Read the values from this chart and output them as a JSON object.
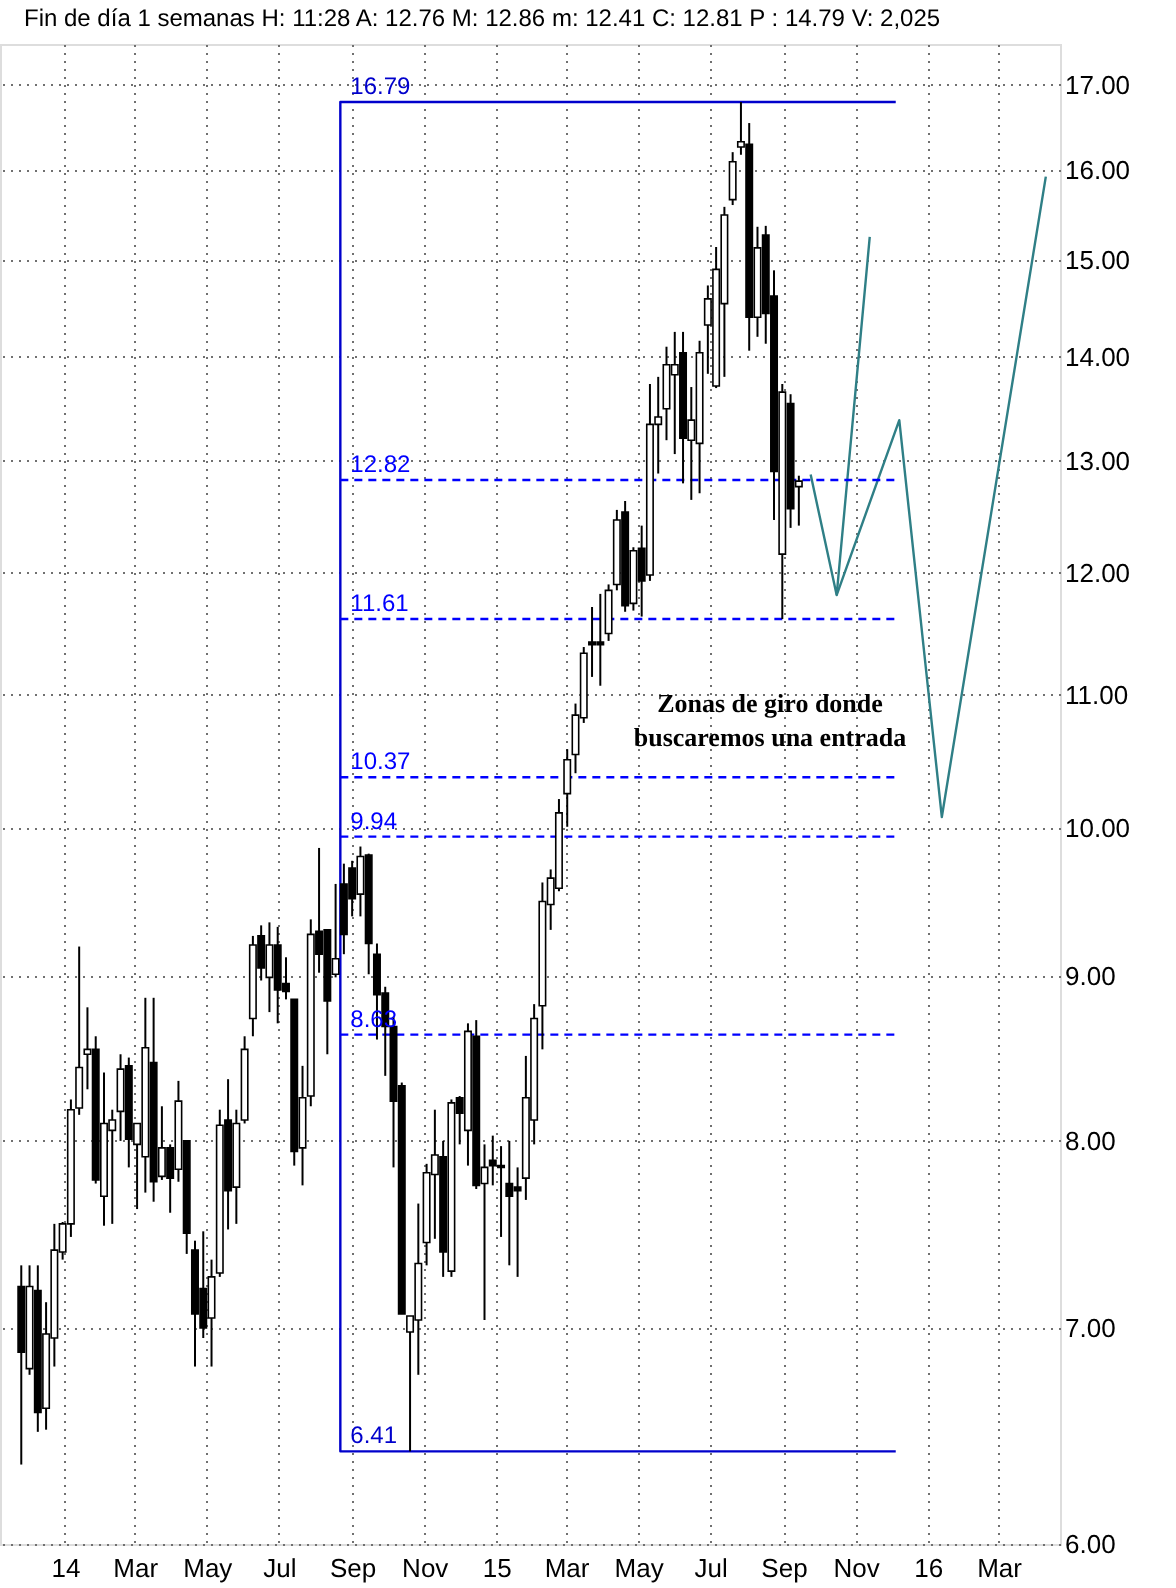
{
  "chart_data": {
    "type": "candlestick",
    "title": "Fin de día 1 semanas  H: 11:28  A: 12.76  M: 12.86  m: 12.41  C: 12.81  P : 14.79  V: 2,025",
    "annotations": [
      "Zonas de giro donde buscaremos una entrada"
    ],
    "x": [
      "2013-11-25",
      "2013-12-02",
      "2013-12-09",
      "2013-12-16",
      "2013-12-23",
      "2013-12-30",
      "2014-01-06",
      "2014-01-13",
      "2014-01-20",
      "2014-01-27",
      "2014-02-03",
      "2014-02-10",
      "2014-02-17",
      "2014-02-24",
      "2014-03-03",
      "2014-03-10",
      "2014-03-17",
      "2014-03-24",
      "2014-03-31",
      "2014-04-07",
      "2014-04-14",
      "2014-04-21",
      "2014-04-28",
      "2014-05-05",
      "2014-05-12",
      "2014-05-19",
      "2014-05-26",
      "2014-06-02",
      "2014-06-09",
      "2014-06-16",
      "2014-06-23",
      "2014-06-30",
      "2014-07-07",
      "2014-07-14",
      "2014-07-21",
      "2014-07-28",
      "2014-08-04",
      "2014-08-11",
      "2014-08-18",
      "2014-08-25",
      "2014-09-01",
      "2014-09-08",
      "2014-09-15",
      "2014-09-22",
      "2014-09-29",
      "2014-10-06",
      "2014-10-13",
      "2014-10-20",
      "2014-10-27",
      "2014-11-03",
      "2014-11-10",
      "2014-11-17",
      "2014-11-24",
      "2014-12-01",
      "2014-12-08",
      "2014-12-15",
      "2014-12-22",
      "2014-12-29",
      "2015-01-05",
      "2015-01-12",
      "2015-01-19",
      "2015-01-26",
      "2015-02-02",
      "2015-02-09",
      "2015-02-16",
      "2015-02-23",
      "2015-03-02",
      "2015-03-09",
      "2015-03-16",
      "2015-03-23",
      "2015-03-30",
      "2015-04-06",
      "2015-04-13",
      "2015-04-20",
      "2015-04-27",
      "2015-05-04",
      "2015-05-11",
      "2015-05-18",
      "2015-05-25",
      "2015-06-01",
      "2015-06-08",
      "2015-06-15",
      "2015-06-22",
      "2015-06-29",
      "2015-07-06",
      "2015-07-13",
      "2015-07-20",
      "2015-07-27",
      "2015-08-03",
      "2015-08-10",
      "2015-08-17",
      "2015-08-24",
      "2015-08-31",
      "2015-09-07",
      "2015-09-14"
    ],
    "ohlc": [
      [
        7.21,
        7.32,
        6.35,
        6.88
      ],
      [
        6.8,
        7.32,
        6.77,
        7.21
      ],
      [
        7.19,
        7.32,
        6.5,
        6.59
      ],
      [
        6.61,
        7.13,
        6.51,
        6.97
      ],
      [
        6.95,
        7.54,
        6.81,
        7.4
      ],
      [
        7.39,
        7.55,
        7.35,
        7.54
      ],
      [
        7.54,
        8.24,
        7.47,
        8.18
      ],
      [
        8.19,
        9.19,
        8.15,
        8.43
      ],
      [
        8.51,
        8.8,
        8.3,
        8.54
      ],
      [
        8.54,
        8.62,
        7.76,
        7.78
      ],
      [
        7.69,
        8.4,
        7.53,
        8.1
      ],
      [
        8.06,
        8.18,
        7.54,
        8.12
      ],
      [
        8.17,
        8.51,
        8.0,
        8.42
      ],
      [
        8.44,
        8.49,
        7.85,
        8.01
      ],
      [
        7.98,
        8.1,
        7.62,
        8.1
      ],
      [
        7.91,
        8.86,
        7.71,
        8.55
      ],
      [
        8.46,
        8.86,
        7.66,
        7.77
      ],
      [
        7.8,
        8.2,
        7.78,
        7.96
      ],
      [
        7.96,
        7.98,
        7.6,
        7.79
      ],
      [
        7.84,
        8.35,
        7.77,
        8.23
      ],
      [
        8.0,
        8.0,
        7.38,
        7.49
      ],
      [
        7.4,
        7.45,
        6.81,
        7.07
      ],
      [
        7.2,
        7.5,
        6.95,
        7.0
      ],
      [
        7.05,
        7.35,
        6.81,
        7.26
      ],
      [
        7.28,
        8.18,
        7.26,
        8.09
      ],
      [
        8.12,
        8.36,
        7.51,
        7.72
      ],
      [
        7.74,
        8.18,
        7.54,
        8.1
      ],
      [
        8.12,
        8.62,
        8.1,
        8.54
      ],
      [
        8.73,
        9.26,
        8.62,
        9.2
      ],
      [
        9.26,
        9.33,
        8.97,
        9.05
      ],
      [
        8.99,
        9.35,
        8.77,
        9.2
      ],
      [
        9.2,
        9.32,
        8.7,
        8.91
      ],
      [
        8.95,
        9.12,
        8.85,
        8.9
      ],
      [
        8.85,
        8.85,
        7.86,
        7.94
      ],
      [
        7.96,
        8.44,
        7.75,
        8.25
      ],
      [
        8.26,
        9.37,
        8.2,
        9.27
      ],
      [
        9.29,
        9.86,
        9.02,
        9.14
      ],
      [
        9.3,
        9.3,
        8.51,
        8.84
      ],
      [
        9.01,
        9.61,
        8.99,
        9.11
      ],
      [
        9.61,
        9.75,
        9.14,
        9.27
      ],
      [
        9.72,
        9.77,
        9.39,
        9.51
      ],
      [
        9.54,
        9.87,
        9.39,
        9.8
      ],
      [
        9.81,
        9.82,
        9.01,
        9.21
      ],
      [
        9.14,
        9.21,
        8.6,
        8.88
      ],
      [
        8.89,
        8.93,
        8.38,
        8.68
      ],
      [
        8.68,
        8.74,
        7.85,
        8.23
      ],
      [
        8.32,
        8.34,
        7.07,
        7.07
      ],
      [
        6.98,
        7.06,
        6.41,
        7.06
      ],
      [
        7.04,
        7.65,
        6.77,
        7.33
      ],
      [
        7.44,
        7.87,
        7.32,
        7.82
      ],
      [
        7.81,
        8.18,
        7.46,
        7.92
      ],
      [
        7.91,
        8.0,
        7.26,
        7.39
      ],
      [
        7.29,
        8.24,
        7.26,
        8.22
      ],
      [
        8.25,
        8.26,
        7.98,
        8.16
      ],
      [
        8.06,
        8.7,
        7.86,
        8.65
      ],
      [
        8.62,
        8.72,
        7.73,
        7.75
      ],
      [
        7.76,
        7.98,
        7.04,
        7.85
      ],
      [
        7.89,
        8.03,
        7.75,
        7.86
      ],
      [
        7.86,
        7.97,
        7.47,
        7.85
      ],
      [
        7.76,
        8.0,
        7.32,
        7.69
      ],
      [
        7.74,
        7.85,
        7.26,
        7.72
      ],
      [
        7.79,
        8.5,
        7.67,
        8.25
      ],
      [
        8.12,
        8.82,
        7.98,
        8.73
      ],
      [
        8.81,
        9.62,
        8.54,
        9.49
      ],
      [
        9.47,
        9.71,
        9.3,
        9.65
      ],
      [
        9.58,
        10.21,
        9.56,
        10.11
      ],
      [
        10.25,
        10.58,
        10.01,
        10.5
      ],
      [
        10.54,
        10.93,
        10.4,
        10.84
      ],
      [
        10.82,
        11.38,
        10.78,
        11.33
      ],
      [
        11.42,
        11.71,
        11.14,
        11.4
      ],
      [
        11.42,
        11.82,
        11.07,
        11.4
      ],
      [
        11.49,
        11.9,
        11.43,
        11.85
      ],
      [
        11.9,
        12.55,
        11.85,
        12.46
      ],
      [
        12.53,
        12.63,
        11.67,
        11.72
      ],
      [
        11.74,
        12.22,
        11.68,
        12.19
      ],
      [
        12.21,
        12.41,
        11.63,
        11.93
      ],
      [
        11.98,
        13.73,
        11.93,
        13.34
      ],
      [
        13.34,
        13.8,
        12.88,
        13.41
      ],
      [
        13.49,
        14.1,
        13.19,
        13.92
      ],
      [
        13.82,
        14.25,
        13.06,
        13.92
      ],
      [
        14.04,
        14.25,
        12.79,
        13.21
      ],
      [
        13.19,
        13.7,
        12.64,
        13.38
      ],
      [
        13.16,
        14.16,
        12.7,
        14.04
      ],
      [
        14.32,
        14.73,
        13.83,
        14.59
      ],
      [
        13.71,
        15.14,
        13.69,
        14.9
      ],
      [
        14.54,
        15.58,
        13.8,
        15.49
      ],
      [
        15.66,
        16.2,
        15.6,
        16.09
      ],
      [
        16.26,
        16.79,
        16.17,
        16.32
      ],
      [
        16.29,
        16.54,
        14.06,
        14.4
      ],
      [
        14.4,
        15.36,
        14.2,
        15.13
      ],
      [
        15.27,
        15.37,
        14.13,
        14.44
      ],
      [
        14.62,
        14.89,
        12.46,
        12.9
      ],
      [
        12.16,
        13.73,
        11.61,
        13.65
      ],
      [
        13.54,
        13.63,
        12.39,
        12.56
      ],
      [
        12.76,
        12.86,
        12.41,
        12.81
      ]
    ],
    "series": [
      {
        "type": "line",
        "color": "#0000cc",
        "line_style": "solid",
        "x": [
          "2015-12-05",
          "2014-08-22",
          "2014-08-22",
          "2015-12-05"
        ],
        "values": [
          16.79,
          16.79,
          6.41,
          6.41
        ],
        "value_labels": [
          null,
          "16.79",
          "6.41",
          null
        ]
      },
      {
        "type": "line",
        "color": "#0000ff",
        "line_style": "dashed",
        "x": [
          "2014-08-22",
          "2015-12-05"
        ],
        "values": [
          12.82,
          12.82
        ],
        "value_labels": [
          "12.82",
          null
        ]
      },
      {
        "type": "line",
        "color": "#0000ff",
        "line_style": "dashed",
        "x": [
          "2014-08-22",
          "2015-12-05"
        ],
        "values": [
          11.61,
          11.61
        ],
        "value_labels": [
          "11.61",
          null
        ]
      },
      {
        "type": "line",
        "color": "#0000ff",
        "line_style": "dashed",
        "x": [
          "2014-08-22",
          "2015-12-05"
        ],
        "values": [
          10.37,
          10.37
        ],
        "value_labels": [
          "10.37",
          null
        ]
      },
      {
        "type": "line",
        "color": "#0000ff",
        "line_style": "dashed",
        "x": [
          "2014-08-22",
          "2015-12-05"
        ],
        "values": [
          9.94,
          9.94
        ],
        "value_labels": [
          "9.94",
          null
        ]
      },
      {
        "type": "line",
        "color": "#0000ff",
        "line_style": "dashed",
        "x": [
          "2014-08-22",
          "2015-12-05"
        ],
        "values": [
          8.63,
          8.63
        ],
        "value_labels": [
          "8.63",
          null
        ]
      },
      {
        "type": "line",
        "color": "#2f7f86",
        "line_style": "solid",
        "x": [
          "2015-09-24",
          "2015-10-16",
          "2015-11-13"
        ],
        "values": [
          12.87,
          11.81,
          15.25
        ]
      },
      {
        "type": "line",
        "color": "#2f7f86",
        "line_style": "solid",
        "x": [
          "2015-10-16",
          "2015-12-08",
          "2016-01-13",
          "2016-04-10"
        ],
        "values": [
          11.81,
          13.38,
          10.08,
          15.92
        ]
      }
    ],
    "xlim": [
      "2013-11-07",
      "2016-04-22"
    ],
    "xticks": [
      {
        "value": "2014-01-01",
        "label": "14"
      },
      {
        "value": "2014-03-01",
        "label": "Mar"
      },
      {
        "value": "2014-05-01",
        "label": "May"
      },
      {
        "value": "2014-07-01",
        "label": "Jul"
      },
      {
        "value": "2014-09-01",
        "label": "Sep"
      },
      {
        "value": "2014-11-01",
        "label": "Nov"
      },
      {
        "value": "2015-01-01",
        "label": "15"
      },
      {
        "value": "2015-03-01",
        "label": "Mar"
      },
      {
        "value": "2015-05-01",
        "label": "May"
      },
      {
        "value": "2015-07-01",
        "label": "Jul"
      },
      {
        "value": "2015-09-01",
        "label": "Sep"
      },
      {
        "value": "2015-11-01",
        "label": "Nov"
      },
      {
        "value": "2016-01-01",
        "label": "16"
      },
      {
        "value": "2016-03-01",
        "label": "Mar"
      }
    ],
    "ylim": [
      6,
      17.5
    ],
    "yticks": [
      {
        "value": 6,
        "label": "6.00"
      },
      {
        "value": 7,
        "label": "7.00"
      },
      {
        "value": 8,
        "label": "8.00"
      },
      {
        "value": 9,
        "label": "9.00"
      },
      {
        "value": 10,
        "label": "10.00"
      },
      {
        "value": 11,
        "label": "11.00"
      },
      {
        "value": 12,
        "label": "12.00"
      },
      {
        "value": 13,
        "label": "13.00"
      },
      {
        "value": 14,
        "label": "14.00"
      },
      {
        "value": 15,
        "label": "15.00"
      },
      {
        "value": 16,
        "label": "16.00"
      },
      {
        "value": 17,
        "label": "17.00"
      }
    ],
    "log": true,
    "grid": true,
    "marker": "none"
  }
}
